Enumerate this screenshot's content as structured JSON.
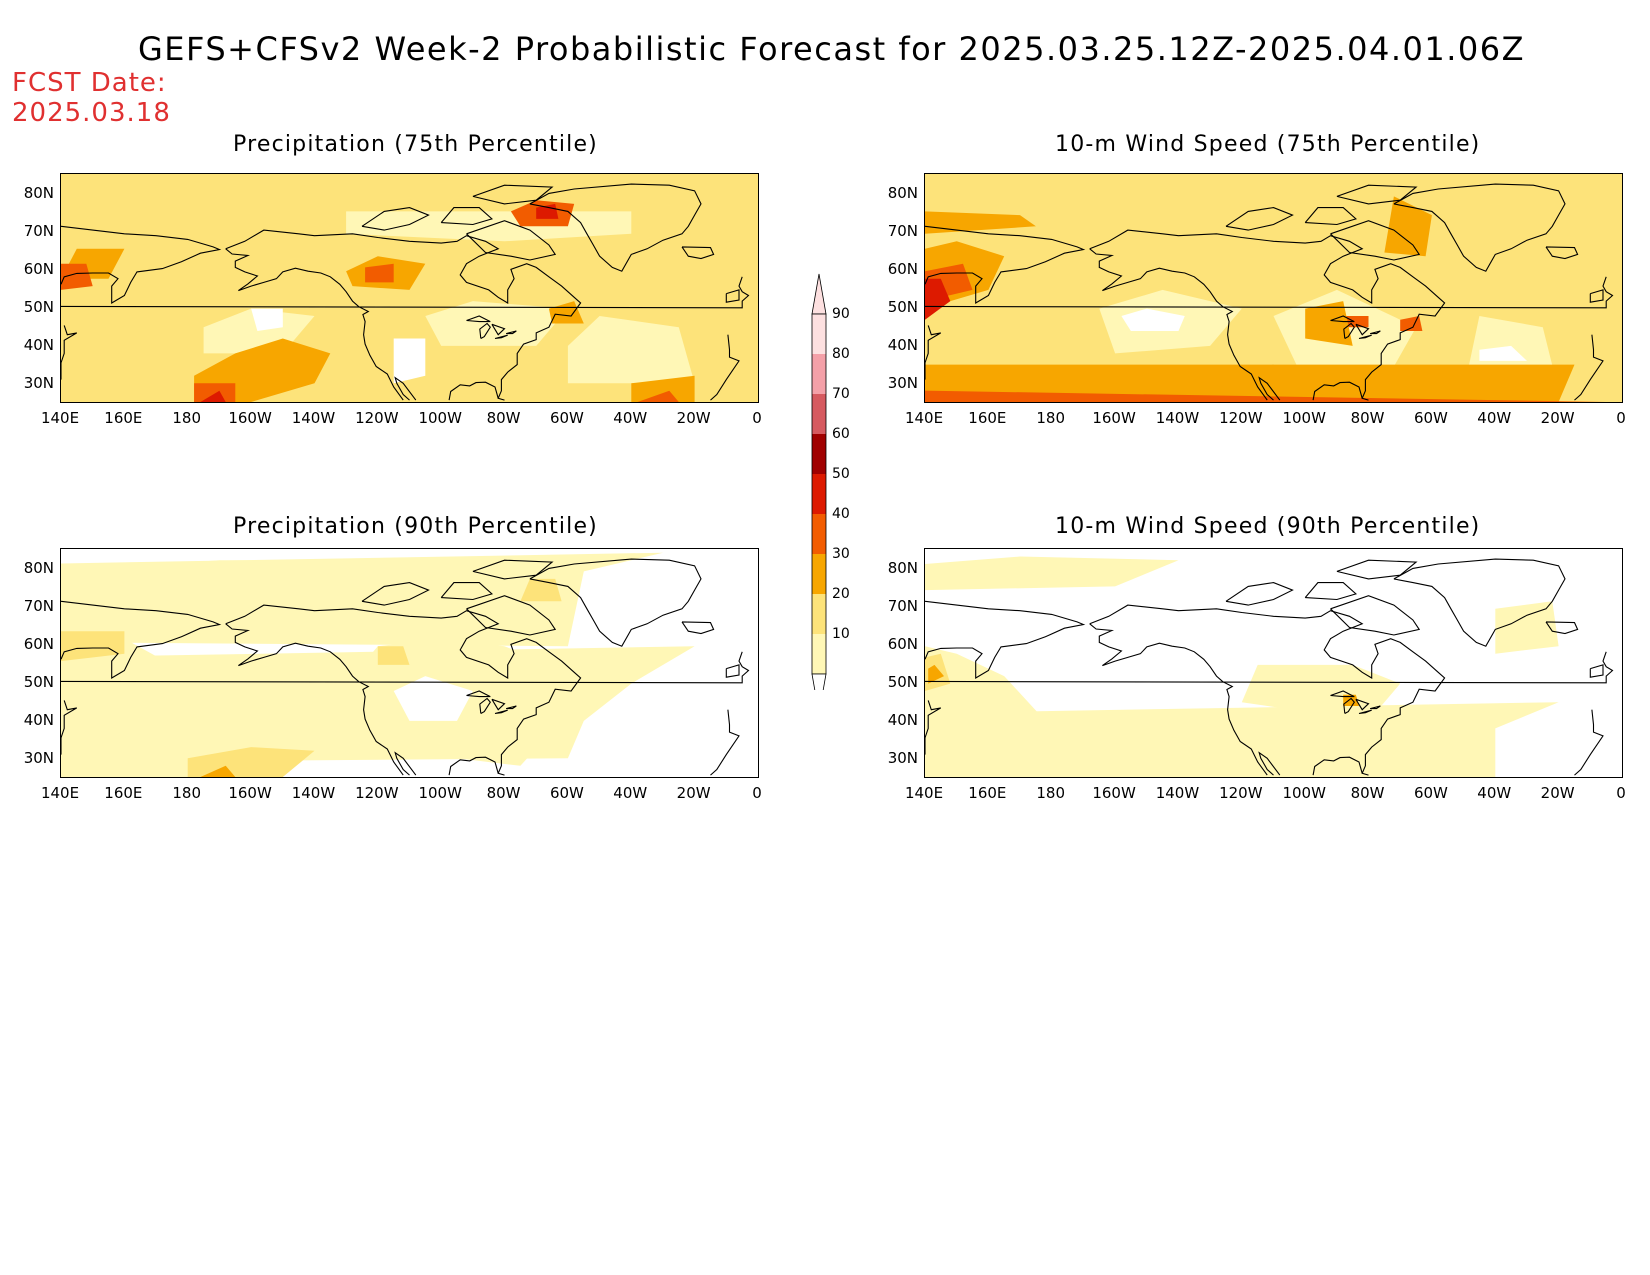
{
  "title": "GEFS+CFSv2 Week-2 Probabilistic Forecast for 2025.03.25.12Z-2025.04.01.06Z",
  "fcst_date": {
    "label": "FCST Date:",
    "value": "2025.03.18"
  },
  "panels": [
    {
      "id": "precip75",
      "title": "Precipitation (75th Percentile)",
      "intensity": "high"
    },
    {
      "id": "wind75",
      "title": "10-m Wind Speed (75th Percentile)",
      "intensity": "high"
    },
    {
      "id": "precip90",
      "title": "Precipitation (90th Percentile)",
      "intensity": "low"
    },
    {
      "id": "wind90",
      "title": "10-m Wind Speed (90th Percentile)",
      "intensity": "low"
    }
  ],
  "axes": {
    "lat_labels": [
      "80N",
      "70N",
      "60N",
      "50N",
      "40N",
      "30N"
    ],
    "lon_labels": [
      "140E",
      "160E",
      "180",
      "160W",
      "140W",
      "120W",
      "100W",
      "80W",
      "60W",
      "40W",
      "20W",
      "0"
    ]
  },
  "colorbar": {
    "levels": [
      "90",
      "80",
      "70",
      "60",
      "50",
      "40",
      "30",
      "20",
      "10"
    ],
    "colors": [
      "#fde0e0",
      "#f4a0a8",
      "#d65a60",
      "#a00000",
      "#dd1a00",
      "#f25c00",
      "#f7a600",
      "#fde37a",
      "#fff7b6"
    ]
  },
  "colors": {
    "title_text": "#000000",
    "fcst_text": "#e03030",
    "coast": "#000000"
  }
}
